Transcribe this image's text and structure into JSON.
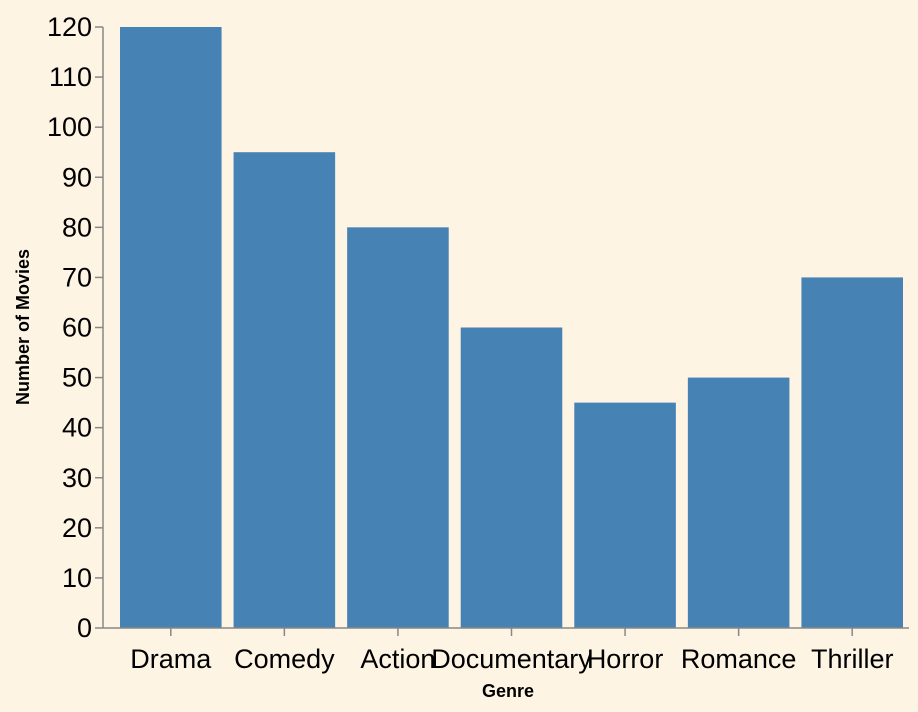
{
  "colors": {
    "background": "#fdf4e4",
    "bar": "#4682b4",
    "axis": "#888888"
  },
  "chart_data": {
    "type": "bar",
    "categories": [
      "Drama",
      "Comedy",
      "Action",
      "Documentary",
      "Horror",
      "Romance",
      "Thriller"
    ],
    "values": [
      120,
      95,
      80,
      60,
      45,
      50,
      70
    ],
    "title": "",
    "xlabel": "Genre",
    "ylabel": "Number of Movies",
    "ylim": [
      0,
      120
    ],
    "yticks": [
      "0",
      "10",
      "20",
      "30",
      "40",
      "50",
      "60",
      "70",
      "80",
      "90",
      "100",
      "110",
      "120"
    ],
    "grid": false
  }
}
